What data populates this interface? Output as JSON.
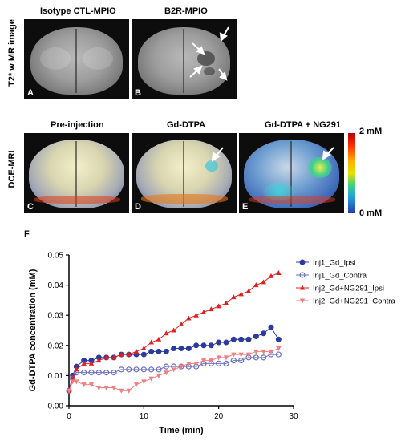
{
  "rows": {
    "mri_label": "T2* w MR image",
    "dce_label": "DCE-MRI"
  },
  "panels": {
    "A": {
      "title": "Isotype CTL-MPIO",
      "letter": "A"
    },
    "B": {
      "title": "B2R-MPIO",
      "letter": "B"
    },
    "C": {
      "title": "Pre-injection",
      "letter": "C"
    },
    "D": {
      "title": "Gd-DTPA",
      "letter": "D"
    },
    "E": {
      "title": "Gd-DTPA + NG291",
      "letter": "E"
    }
  },
  "colorbar": {
    "max_label": "2 mM",
    "min_label": "0 mM",
    "colors": [
      "#b40000",
      "#ffb000",
      "#e8e000",
      "#20a0e0",
      "#2a3aa8"
    ]
  },
  "panel_F": {
    "letter": "F"
  },
  "chart_data": {
    "type": "scatter",
    "xlabel": "Time (min)",
    "ylabel": "Gd-DTPA concentration (mM)",
    "xlim": [
      0,
      30
    ],
    "ylim": [
      0,
      0.05
    ],
    "xticks": [
      0,
      10,
      20,
      30
    ],
    "yticks": [
      0.0,
      0.01,
      0.02,
      0.03,
      0.04,
      0.05
    ],
    "ytick_labels": [
      "0.00",
      "0.01",
      "0.02",
      "0.03",
      "0.04",
      "0.05"
    ],
    "legend_position": "right",
    "series": [
      {
        "name": "Inj1_Gd_Ipsi",
        "color": "#2b3aa0",
        "marker": "circle-filled",
        "x": [
          0,
          0.5,
          1,
          2,
          3,
          4,
          5,
          6,
          7,
          8,
          9,
          10,
          11,
          12,
          13,
          14,
          15,
          16,
          17,
          18,
          19,
          20,
          21,
          22,
          23,
          24,
          25,
          26,
          27,
          28
        ],
        "y": [
          0.005,
          0.01,
          0.013,
          0.015,
          0.015,
          0.016,
          0.016,
          0.016,
          0.017,
          0.017,
          0.017,
          0.017,
          0.018,
          0.018,
          0.018,
          0.019,
          0.019,
          0.019,
          0.02,
          0.02,
          0.02,
          0.021,
          0.021,
          0.022,
          0.022,
          0.022,
          0.023,
          0.024,
          0.026,
          0.022
        ]
      },
      {
        "name": "Inj1_Gd_Contra",
        "color": "#6a70c0",
        "marker": "circle-open",
        "x": [
          0,
          0.5,
          1,
          2,
          3,
          4,
          5,
          6,
          7,
          8,
          9,
          10,
          11,
          12,
          13,
          14,
          15,
          16,
          17,
          18,
          19,
          20,
          21,
          22,
          23,
          24,
          25,
          26,
          27,
          28
        ],
        "y": [
          0.005,
          0.009,
          0.011,
          0.011,
          0.011,
          0.011,
          0.011,
          0.011,
          0.012,
          0.012,
          0.012,
          0.012,
          0.012,
          0.012,
          0.013,
          0.013,
          0.013,
          0.013,
          0.013,
          0.014,
          0.014,
          0.014,
          0.014,
          0.015,
          0.015,
          0.016,
          0.016,
          0.016,
          0.017,
          0.017
        ]
      },
      {
        "name": "Inj2_Gd+NG291_Ipsi",
        "color": "#e02020",
        "marker": "triangle-up",
        "x": [
          0,
          0.5,
          1,
          2,
          3,
          4,
          5,
          6,
          7,
          8,
          9,
          10,
          11,
          12,
          13,
          14,
          15,
          16,
          17,
          18,
          19,
          20,
          21,
          22,
          23,
          24,
          25,
          26,
          27,
          28
        ],
        "y": [
          0.005,
          0.009,
          0.012,
          0.014,
          0.014,
          0.015,
          0.016,
          0.016,
          0.017,
          0.017,
          0.018,
          0.019,
          0.021,
          0.022,
          0.024,
          0.025,
          0.027,
          0.029,
          0.03,
          0.031,
          0.032,
          0.033,
          0.034,
          0.036,
          0.037,
          0.038,
          0.04,
          0.041,
          0.043,
          0.044
        ]
      },
      {
        "name": "Inj2_Gd+NG291_Contra",
        "color": "#f08080",
        "marker": "triangle-down",
        "x": [
          0,
          0.5,
          1,
          2,
          3,
          4,
          5,
          6,
          7,
          8,
          9,
          10,
          11,
          12,
          13,
          14,
          15,
          16,
          17,
          18,
          19,
          20,
          21,
          22,
          23,
          24,
          25,
          26,
          27,
          28
        ],
        "y": [
          0.005,
          0.008,
          0.008,
          0.007,
          0.007,
          0.006,
          0.006,
          0.006,
          0.005,
          0.005,
          0.007,
          0.008,
          0.009,
          0.01,
          0.011,
          0.012,
          0.013,
          0.014,
          0.014,
          0.015,
          0.015,
          0.016,
          0.016,
          0.017,
          0.017,
          0.017,
          0.018,
          0.018,
          0.018,
          0.019
        ]
      }
    ]
  }
}
